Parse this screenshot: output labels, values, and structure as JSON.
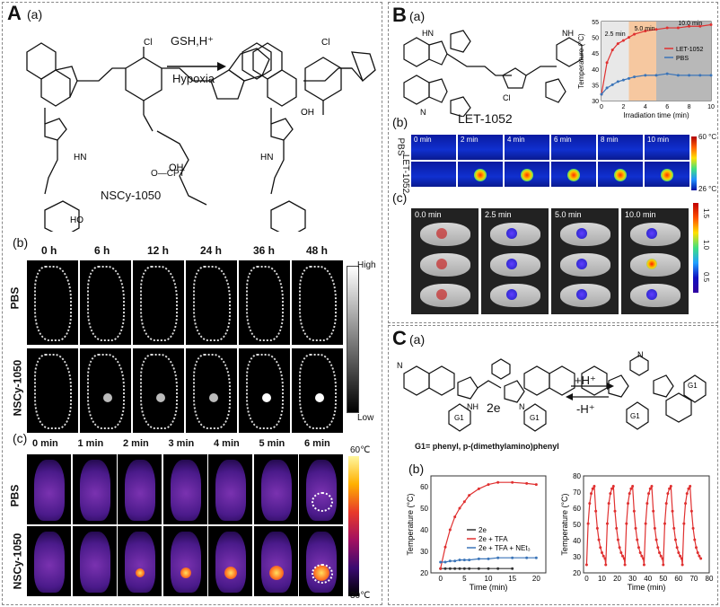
{
  "panelA": {
    "letter": "A",
    "sub_a": "(a)",
    "sub_b": "(b)",
    "sub_c": "(c)",
    "arrow_top": "GSH,H⁺",
    "arrow_bottom": "Hypoxia",
    "compound": "NSCy-1050",
    "cpt": "O—CPT",
    "b_times": [
      "0 h",
      "6 h",
      "12 h",
      "24 h",
      "36 h",
      "48 h"
    ],
    "b_rows": [
      "PBS",
      "NSCy-1050"
    ],
    "b_scale_high": "High",
    "b_scale_low": "Low",
    "c_times": [
      "0 min",
      "1 min",
      "2 min",
      "3 min",
      "4 min",
      "5 min",
      "6 min"
    ],
    "c_rows": [
      "PBS",
      "NSCy-1050"
    ],
    "c_scale_high": "60℃",
    "c_scale_low": "30℃"
  },
  "panelB": {
    "letter": "B",
    "sub_a": "(a)",
    "sub_b": "(b)",
    "sub_c": "(c)",
    "compound": "LET-1052",
    "b_times": [
      "0 min",
      "2 min",
      "4 min",
      "6 min",
      "8 min",
      "10 min"
    ],
    "b_rows": [
      "PBS",
      "LET-1052"
    ],
    "b_scale_high": "60 °C",
    "b_scale_low": "26 °C",
    "c_times": [
      "0.0 min",
      "2.5 min",
      "5.0 min",
      "10.0 min"
    ],
    "c_scale_ticks": [
      "1.5",
      "1.0",
      "0.5"
    ]
  },
  "panelC": {
    "letter": "C",
    "sub_a": "(a)",
    "sub_b": "(b)",
    "compound": "2e",
    "fwd": "+H⁺",
    "rev": "-H⁺",
    "g1_note": "G1= phenyl, p-(dimethylamino)phenyl"
  },
  "chart_data": [
    {
      "type": "line",
      "xlabel": "Irradiation time (min)",
      "ylabel": "Temperature (°C)",
      "xlim": [
        0,
        10
      ],
      "ylim": [
        30,
        55
      ],
      "xticks": [
        0,
        2,
        4,
        6,
        8,
        10
      ],
      "yticks": [
        30,
        35,
        40,
        45,
        50,
        55
      ],
      "annotations": [
        "2.5 min",
        "5.0 min",
        "10.0 min"
      ],
      "x": [
        0,
        0.5,
        1,
        1.5,
        2,
        2.5,
        3,
        4,
        5,
        6,
        7,
        8,
        9,
        10
      ],
      "series": [
        {
          "name": "LET-1052",
          "color": "#e03030",
          "values": [
            32,
            42,
            46,
            48,
            49,
            50,
            51,
            52,
            52.5,
            53,
            53,
            53.5,
            53.5,
            54
          ]
        },
        {
          "name": "PBS",
          "color": "#3a74b8",
          "values": [
            32,
            34,
            35,
            36,
            36.5,
            37,
            37.5,
            38,
            38,
            38.5,
            38,
            38,
            38,
            38
          ]
        }
      ]
    },
    {
      "type": "line",
      "xlabel": "Time (min)",
      "ylabel": "Temperature (°C)",
      "xlim": [
        -2,
        22
      ],
      "ylim": [
        20,
        65
      ],
      "xticks": [
        0,
        5,
        10,
        15,
        20
      ],
      "yticks": [
        20,
        30,
        40,
        50,
        60
      ],
      "x": [
        0,
        1,
        2,
        3,
        4,
        5,
        6,
        8,
        10,
        12,
        15,
        18,
        20
      ],
      "series": [
        {
          "name": "2e",
          "color": "#333333",
          "values": [
            22,
            22,
            22,
            22,
            22,
            22,
            22,
            22,
            22,
            22,
            22,
            null,
            null
          ]
        },
        {
          "name": "2e + TFA",
          "color": "#e03030",
          "values": [
            22,
            32,
            40,
            46,
            50,
            53,
            56,
            59,
            61,
            62,
            62,
            61.5,
            61
          ]
        },
        {
          "name": "2e + TFA + NEt₃",
          "color": "#3a74b8",
          "values": [
            25,
            25,
            25.5,
            25.5,
            26,
            26,
            26,
            26.5,
            26.5,
            27,
            27,
            27,
            27
          ]
        }
      ]
    },
    {
      "type": "line",
      "xlabel": "Time (min)",
      "ylabel": "Temperature (°C)",
      "xlim": [
        -2,
        80
      ],
      "ylim": [
        20,
        80
      ],
      "xticks": [
        0,
        10,
        20,
        30,
        40,
        50,
        60,
        70,
        80
      ],
      "yticks": [
        20,
        30,
        40,
        50,
        60,
        70,
        80
      ],
      "series": [
        {
          "name": "",
          "color": "#e03030",
          "values": []
        }
      ]
    }
  ]
}
